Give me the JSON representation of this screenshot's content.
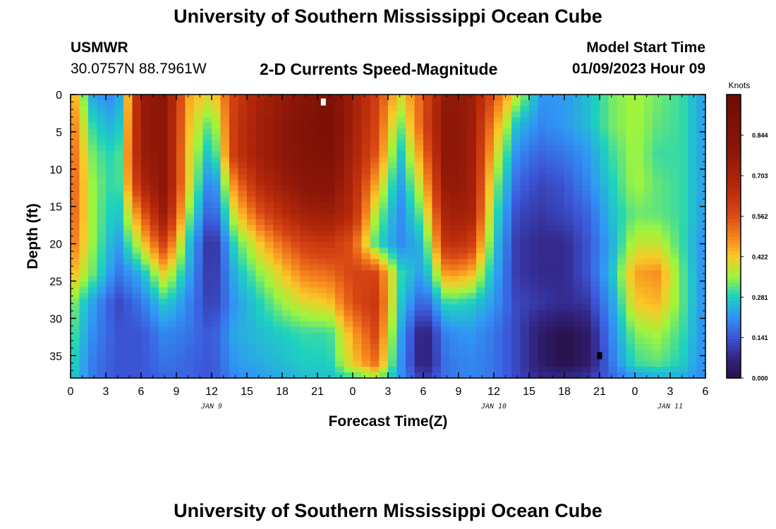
{
  "page": {
    "title": "University of Southern Mississippi Ocean Cube",
    "bottom_title": "University of Southern Mississippi Ocean Cube",
    "station": "USMWR",
    "coords": "30.0757N  88.7961W",
    "subtitle": "2-D Currents Speed-Magnitude",
    "model_start_label": "Model Start Time",
    "model_start_value": "01/09/2023 Hour 09"
  },
  "chart_data": {
    "type": "heatmap",
    "title": "2-D Currents Speed-Magnitude",
    "xlabel": "Forecast Time(Z)",
    "ylabel": "Depth (ft)",
    "colorbar_label": "Knots",
    "colorbar_ticks": [
      "0.844",
      "0.703",
      "0.562",
      "0.422",
      "0.281",
      "0.141",
      "0.000"
    ],
    "colorbar_values": [
      0.844,
      0.703,
      0.562,
      0.422,
      0.281,
      0.141,
      0.0
    ],
    "colorbar_range": [
      0,
      0.985
    ],
    "x_ticks": [
      "0",
      "3",
      "6",
      "9",
      "12",
      "15",
      "18",
      "21",
      "0",
      "3",
      "6",
      "9",
      "12",
      "15",
      "18",
      "21",
      "0",
      "3",
      "6"
    ],
    "x_range_hours": [
      0,
      54
    ],
    "date_labels": [
      {
        "text": "JAN 9",
        "hour": 12
      },
      {
        "text": "JAN 10",
        "hour": 36
      },
      {
        "text": "JAN 11",
        "hour": 51
      }
    ],
    "y_ticks": [
      "0",
      "5",
      "10",
      "15",
      "20",
      "25",
      "30",
      "35"
    ],
    "ylim": [
      0,
      38
    ],
    "markers": [
      {
        "hour": 21.5,
        "depth": 1,
        "color": "#ffffff"
      },
      {
        "hour": 45,
        "depth": 35,
        "color": "#000000"
      }
    ],
    "grid_hours": [
      0,
      2,
      4,
      6,
      8,
      10,
      12,
      14,
      16,
      18,
      20,
      22,
      24,
      26,
      28,
      30,
      32,
      34,
      36,
      38,
      40,
      42,
      44,
      46,
      48,
      50,
      52,
      54
    ],
    "grid_depths": [
      0,
      4,
      8,
      12,
      16,
      20,
      24,
      28,
      32,
      36,
      38
    ],
    "speed_grid": [
      [
        0.48,
        0.22,
        0.2,
        0.75,
        0.8,
        0.46,
        0.4,
        0.6,
        0.7,
        0.75,
        0.82,
        0.88,
        0.72,
        0.6,
        0.4,
        0.55,
        0.78,
        0.75,
        0.55,
        0.38,
        0.22,
        0.22,
        0.26,
        0.33,
        0.36,
        0.33,
        0.3,
        0.22
      ],
      [
        0.52,
        0.28,
        0.24,
        0.75,
        0.8,
        0.44,
        0.3,
        0.62,
        0.72,
        0.78,
        0.86,
        0.9,
        0.72,
        0.58,
        0.32,
        0.56,
        0.8,
        0.75,
        0.48,
        0.26,
        0.2,
        0.22,
        0.26,
        0.33,
        0.36,
        0.32,
        0.3,
        0.22
      ],
      [
        0.54,
        0.32,
        0.28,
        0.74,
        0.8,
        0.42,
        0.24,
        0.62,
        0.72,
        0.78,
        0.84,
        0.88,
        0.7,
        0.55,
        0.26,
        0.5,
        0.8,
        0.75,
        0.42,
        0.2,
        0.16,
        0.18,
        0.22,
        0.3,
        0.36,
        0.3,
        0.3,
        0.22
      ],
      [
        0.55,
        0.34,
        0.28,
        0.68,
        0.8,
        0.42,
        0.16,
        0.5,
        0.66,
        0.74,
        0.8,
        0.82,
        0.68,
        0.45,
        0.22,
        0.42,
        0.78,
        0.74,
        0.36,
        0.16,
        0.12,
        0.14,
        0.2,
        0.28,
        0.36,
        0.32,
        0.3,
        0.22
      ],
      [
        0.55,
        0.34,
        0.26,
        0.52,
        0.76,
        0.35,
        0.12,
        0.4,
        0.55,
        0.65,
        0.72,
        0.74,
        0.66,
        0.36,
        0.2,
        0.34,
        0.72,
        0.72,
        0.32,
        0.12,
        0.1,
        0.12,
        0.16,
        0.26,
        0.33,
        0.32,
        0.3,
        0.22
      ],
      [
        0.52,
        0.34,
        0.22,
        0.4,
        0.6,
        0.28,
        0.06,
        0.3,
        0.42,
        0.52,
        0.6,
        0.62,
        0.55,
        0.3,
        0.2,
        0.26,
        0.65,
        0.62,
        0.28,
        0.1,
        0.08,
        0.08,
        0.14,
        0.24,
        0.38,
        0.38,
        0.3,
        0.2
      ],
      [
        0.45,
        0.32,
        0.18,
        0.25,
        0.42,
        0.24,
        0.08,
        0.25,
        0.34,
        0.42,
        0.5,
        0.52,
        0.58,
        0.58,
        0.3,
        0.22,
        0.48,
        0.45,
        0.25,
        0.1,
        0.08,
        0.08,
        0.14,
        0.26,
        0.46,
        0.48,
        0.32,
        0.2
      ],
      [
        0.35,
        0.22,
        0.12,
        0.18,
        0.28,
        0.2,
        0.1,
        0.22,
        0.28,
        0.35,
        0.4,
        0.42,
        0.56,
        0.62,
        0.28,
        0.14,
        0.3,
        0.28,
        0.22,
        0.12,
        0.1,
        0.08,
        0.1,
        0.22,
        0.42,
        0.44,
        0.32,
        0.2
      ],
      [
        0.32,
        0.2,
        0.14,
        0.14,
        0.2,
        0.18,
        0.14,
        0.24,
        0.26,
        0.28,
        0.3,
        0.3,
        0.46,
        0.58,
        0.24,
        0.04,
        0.2,
        0.22,
        0.18,
        0.12,
        0.04,
        0.0,
        0.04,
        0.2,
        0.34,
        0.36,
        0.3,
        0.2
      ],
      [
        0.3,
        0.18,
        0.14,
        0.14,
        0.18,
        0.16,
        0.14,
        0.22,
        0.24,
        0.26,
        0.28,
        0.28,
        0.42,
        0.52,
        0.22,
        0.04,
        0.18,
        0.2,
        0.18,
        0.12,
        0.04,
        0.0,
        0.04,
        0.18,
        0.3,
        0.32,
        0.28,
        0.2
      ],
      [
        0.28,
        0.18,
        0.14,
        0.14,
        0.16,
        0.16,
        0.14,
        0.2,
        0.22,
        0.24,
        0.26,
        0.26,
        0.3,
        0.35,
        0.22,
        0.1,
        0.18,
        0.2,
        0.18,
        0.12,
        0.08,
        0.08,
        0.1,
        0.16,
        0.22,
        0.24,
        0.24,
        0.2
      ]
    ]
  }
}
